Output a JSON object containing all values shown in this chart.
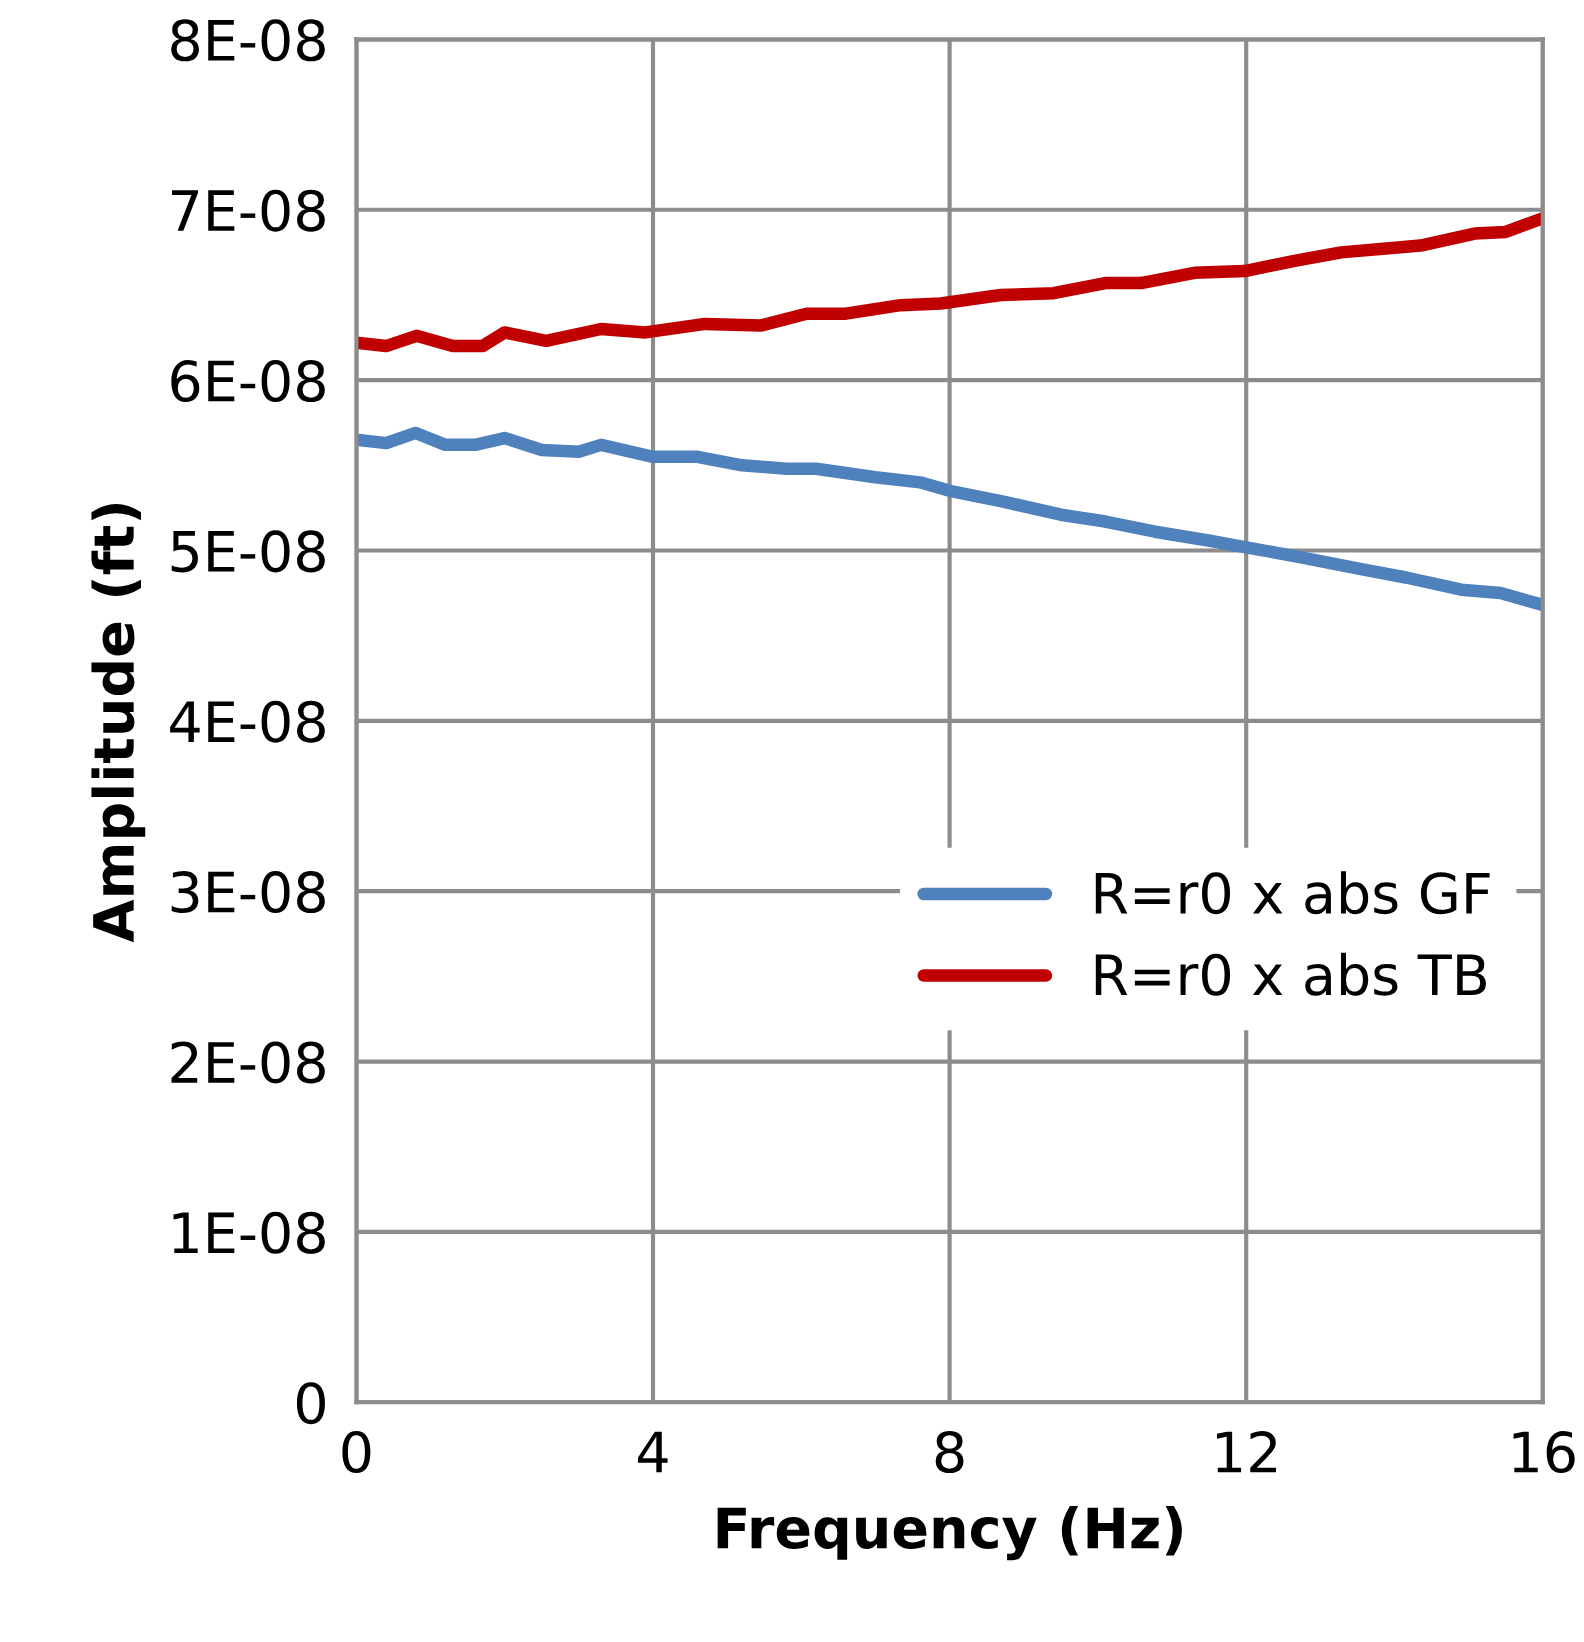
{
  "chart_data": {
    "type": "line",
    "xlabel": "Frequency (Hz)",
    "ylabel": "Amplitude (ft)",
    "xlim": [
      0,
      16
    ],
    "xticks": [
      0,
      4,
      8,
      12,
      16
    ],
    "ylim": [
      0,
      8e-08
    ],
    "yticks": [
      {
        "value": 0,
        "label": "0"
      },
      {
        "value": 1e-08,
        "label": "1E-08"
      },
      {
        "value": 2e-08,
        "label": "2E-08"
      },
      {
        "value": 3e-08,
        "label": "3E-08"
      },
      {
        "value": 4e-08,
        "label": "4E-08"
      },
      {
        "value": 5e-08,
        "label": "5E-08"
      },
      {
        "value": 6e-08,
        "label": "6E-08"
      },
      {
        "value": 7e-08,
        "label": "7E-08"
      },
      {
        "value": 8e-08,
        "label": "8E-08"
      }
    ],
    "grid": true,
    "legend": "right",
    "marker": "none",
    "line_style": "solid",
    "series": [
      {
        "name": "R=r0 x abs GF",
        "color": "#4f81bd",
        "x": [
          0,
          0.4,
          0.8,
          1.2,
          1.6,
          2.0,
          2.5,
          3.0,
          3.3,
          4.0,
          4.6,
          5.2,
          5.8,
          6.2,
          7.0,
          7.6,
          8.0,
          8.69,
          9.5,
          10.1,
          10.77,
          11.47,
          11.98,
          12.74,
          13.55,
          14.17,
          14.9,
          15.43,
          16
        ],
        "values": [
          5.65e-08,
          5.63e-08,
          5.69e-08,
          5.62e-08,
          5.62e-08,
          5.66e-08,
          5.59e-08,
          5.58e-08,
          5.62e-08,
          5.55e-08,
          5.55e-08,
          5.5e-08,
          5.48e-08,
          5.48e-08,
          5.43e-08,
          5.4e-08,
          5.35e-08,
          5.29e-08,
          5.21e-08,
          5.17e-08,
          5.11e-08,
          5.06e-08,
          5.02e-08,
          4.96e-08,
          4.89e-08,
          4.84e-08,
          4.77e-08,
          4.75e-08,
          4.68e-08
        ]
      },
      {
        "name": "R=r0 x abs TB",
        "color": "#c00000",
        "x": [
          0,
          0.4,
          0.81,
          1.3,
          1.7,
          2.0,
          2.56,
          3.3,
          3.9,
          4.7,
          5.45,
          6.07,
          6.6,
          7.34,
          7.88,
          8.69,
          9.4,
          10.1,
          10.58,
          11.3,
          11.98,
          12.65,
          13.28,
          14.35,
          15.08,
          15.5,
          16
        ],
        "values": [
          6.22e-08,
          6.2e-08,
          6.26e-08,
          6.2e-08,
          6.2e-08,
          6.28e-08,
          6.23e-08,
          6.3e-08,
          6.28e-08,
          6.33e-08,
          6.32e-08,
          6.39e-08,
          6.39e-08,
          6.44e-08,
          6.45e-08,
          6.5e-08,
          6.51e-08,
          6.57e-08,
          6.57e-08,
          6.63e-08,
          6.64e-08,
          6.7e-08,
          6.75e-08,
          6.79e-08,
          6.86e-08,
          6.87e-08,
          6.95e-08
        ]
      }
    ]
  }
}
